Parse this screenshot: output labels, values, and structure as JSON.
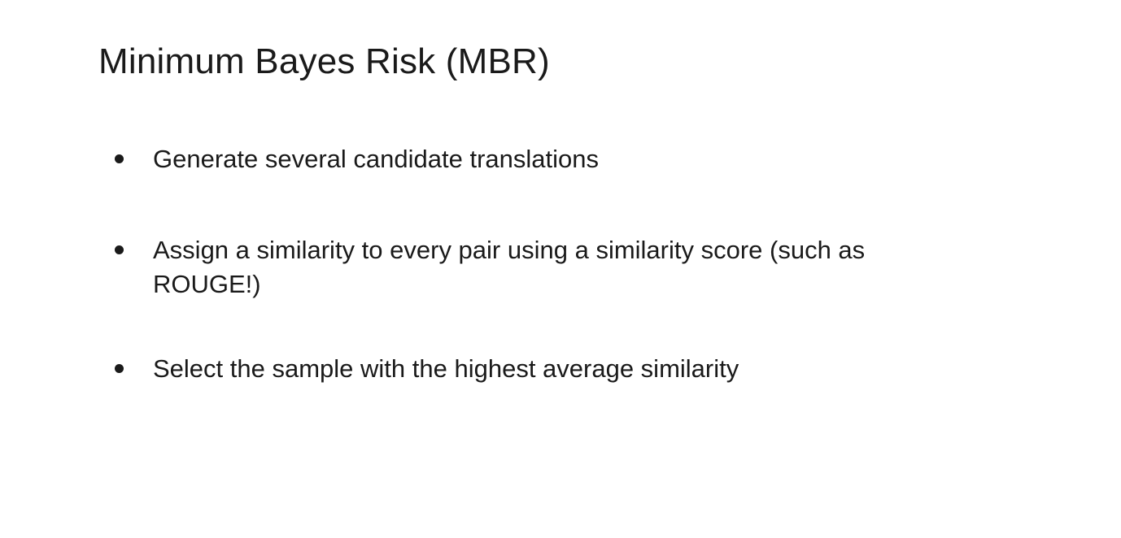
{
  "slide": {
    "title": "Minimum Bayes Risk (MBR)",
    "bullets": [
      "Generate several candidate translations",
      "Assign a similarity to every pair using a similarity score (such as\nROUGE!)",
      "Select the sample with the highest average similarity"
    ]
  }
}
